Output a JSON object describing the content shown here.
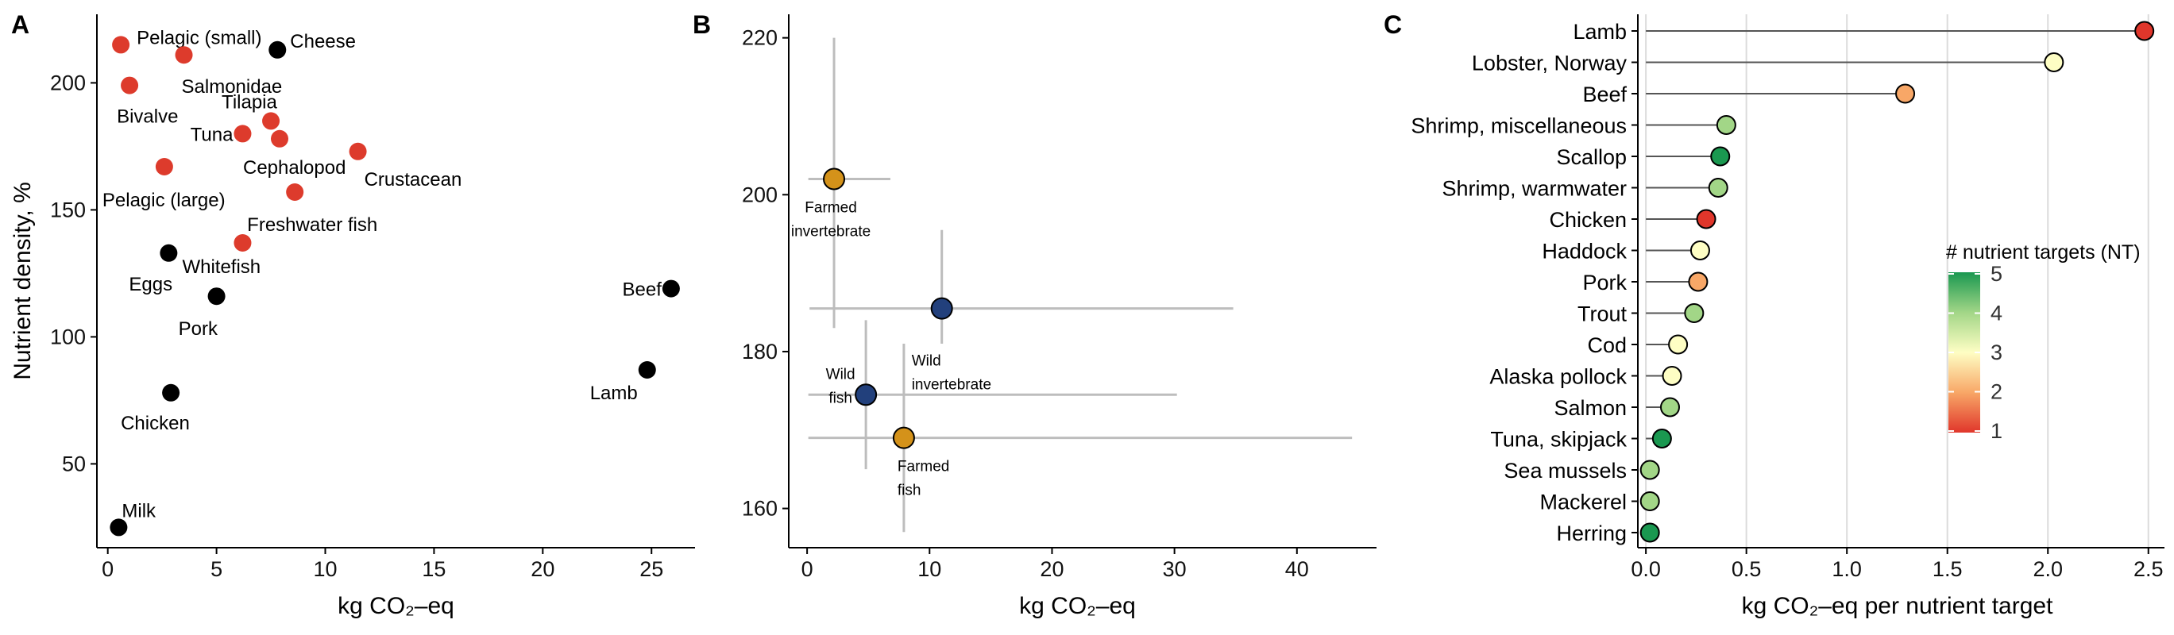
{
  "chart_data": [
    {
      "panel": "A",
      "type": "scatter",
      "xlabel": "kg CO₂–eq",
      "ylabel": "Nutrient density, %",
      "xlim": [
        -0.5,
        27
      ],
      "ylim": [
        17,
        227
      ],
      "xticks": [
        0,
        5,
        10,
        15,
        20,
        25
      ],
      "yticks": [
        50,
        100,
        150,
        200
      ],
      "grid": false,
      "colors": {
        "aquatic": "#dd3b2c",
        "terrestrial": "#000000"
      },
      "points": [
        {
          "label": "Pelagic (small)",
          "x": 0.6,
          "y": 215,
          "group": "aquatic"
        },
        {
          "label": "Salmonidae",
          "x": 3.5,
          "y": 211,
          "group": "aquatic"
        },
        {
          "label": "Cheese",
          "x": 7.8,
          "y": 213,
          "group": "terrestrial"
        },
        {
          "label": "Bivalve",
          "x": 1.0,
          "y": 199,
          "group": "aquatic"
        },
        {
          "label": "Tilapia",
          "x": 7.5,
          "y": 185,
          "group": "aquatic"
        },
        {
          "label": "Tuna",
          "x": 6.2,
          "y": 180,
          "group": "aquatic"
        },
        {
          "label": "Cephalopod",
          "x": 7.9,
          "y": 178,
          "group": "aquatic"
        },
        {
          "label": "Crustacean",
          "x": 11.5,
          "y": 173,
          "group": "aquatic"
        },
        {
          "label": "Pelagic (large)",
          "x": 2.6,
          "y": 167,
          "group": "aquatic"
        },
        {
          "label": "Freshwater fish",
          "x": 8.6,
          "y": 157,
          "group": "aquatic"
        },
        {
          "label": "Whitefish",
          "x": 6.2,
          "y": 137,
          "group": "aquatic"
        },
        {
          "label": "Eggs",
          "x": 2.8,
          "y": 133,
          "group": "terrestrial"
        },
        {
          "label": "Beef",
          "x": 25.9,
          "y": 119,
          "group": "terrestrial"
        },
        {
          "label": "Pork",
          "x": 5.0,
          "y": 116,
          "group": "terrestrial"
        },
        {
          "label": "Lamb",
          "x": 24.8,
          "y": 87,
          "group": "terrestrial"
        },
        {
          "label": "Chicken",
          "x": 2.9,
          "y": 78,
          "group": "terrestrial"
        },
        {
          "label": "Milk",
          "x": 0.5,
          "y": 25,
          "group": "terrestrial"
        }
      ]
    },
    {
      "panel": "B",
      "type": "scatter",
      "xlabel": "kg CO₂–eq",
      "ylabel": "",
      "xlim": [
        -1.5,
        46.5
      ],
      "ylim": [
        155,
        223
      ],
      "xticks": [
        0,
        10,
        20,
        30,
        40
      ],
      "yticks": [
        160,
        180,
        200,
        220
      ],
      "grid": false,
      "points": [
        {
          "label": "Farmed invertebrate",
          "label_lines": [
            "Farmed",
            "invertebrate"
          ],
          "x": 2.2,
          "y": 202,
          "x_err": [
            0.1,
            6.8
          ],
          "y_err": [
            183,
            220
          ],
          "color": "#d4921a"
        },
        {
          "label": "Wild invertebrate",
          "label_lines": [
            "Wild",
            "invertebrate"
          ],
          "x": 11.0,
          "y": 185.5,
          "x_err": [
            0.2,
            34.8
          ],
          "y_err": [
            181,
            195.5
          ],
          "color": "#22407c"
        },
        {
          "label": "Wild fish",
          "label_lines": [
            "Wild",
            "fish"
          ],
          "x": 4.8,
          "y": 174.5,
          "x_err": [
            0.1,
            30.2
          ],
          "y_err": [
            165,
            184
          ],
          "color": "#22407c"
        },
        {
          "label": "Farmed fish",
          "label_lines": [
            "Farmed",
            "fish"
          ],
          "x": 7.9,
          "y": 169,
          "x_err": [
            0.1,
            44.5
          ],
          "y_err": [
            157,
            181
          ],
          "color": "#d4921a"
        }
      ]
    },
    {
      "panel": "C",
      "type": "lollipop",
      "xlabel": "kg CO₂–eq per nutrient target",
      "ylabel": "",
      "xlim": [
        -0.04,
        2.58
      ],
      "xticks": [
        0.0,
        0.5,
        1.0,
        1.5,
        2.0,
        2.5
      ],
      "grid": "vertical",
      "legend": {
        "title": "# nutrient targets (NT)",
        "ticks": [
          1,
          2,
          3,
          4,
          5
        ],
        "position": "right"
      },
      "color_scale": {
        "1": "#e0362b",
        "2": "#f8a767",
        "3": "#fefec4",
        "4": "#a2d687",
        "5": "#1a9850"
      },
      "items": [
        {
          "label": "Lamb",
          "value": 2.48,
          "nt": 1
        },
        {
          "label": "Lobster, Norway",
          "value": 2.03,
          "nt": 3
        },
        {
          "label": "Beef",
          "value": 1.29,
          "nt": 2
        },
        {
          "label": "Shrimp, miscellaneous",
          "value": 0.4,
          "nt": 4
        },
        {
          "label": "Scallop",
          "value": 0.37,
          "nt": 5
        },
        {
          "label": "Shrimp, warmwater",
          "value": 0.36,
          "nt": 4
        },
        {
          "label": "Chicken",
          "value": 0.3,
          "nt": 1
        },
        {
          "label": "Haddock",
          "value": 0.27,
          "nt": 3
        },
        {
          "label": "Pork",
          "value": 0.26,
          "nt": 2
        },
        {
          "label": "Trout",
          "value": 0.24,
          "nt": 4
        },
        {
          "label": "Cod",
          "value": 0.16,
          "nt": 3
        },
        {
          "label": "Alaska pollock",
          "value": 0.13,
          "nt": 3
        },
        {
          "label": "Salmon",
          "value": 0.12,
          "nt": 4
        },
        {
          "label": "Tuna, skipjack",
          "value": 0.08,
          "nt": 5
        },
        {
          "label": "Sea mussels",
          "value": 0.02,
          "nt": 4
        },
        {
          "label": "Mackerel",
          "value": 0.02,
          "nt": 4
        },
        {
          "label": "Herring",
          "value": 0.02,
          "nt": 5
        }
      ]
    }
  ]
}
